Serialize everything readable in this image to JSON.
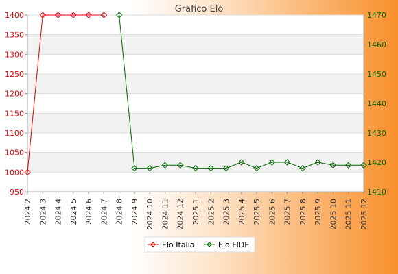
{
  "chart_data": {
    "type": "line",
    "title": "Grafico Elo",
    "xlabel": "",
    "ylabel": "",
    "categories": [
      "2024 2",
      "2024 3",
      "2024 4",
      "2024 5",
      "2024 6",
      "2024 7",
      "2024 8",
      "2024 9",
      "2024 10",
      "2024 11",
      "2024 12",
      "2025 1",
      "2025 2",
      "2025 3",
      "2025 4",
      "2025 5",
      "2025 6",
      "2025 7",
      "2025 8",
      "2025 9",
      "2025 10",
      "2025 11",
      "2025 12"
    ],
    "ylim_left": [
      950,
      1400
    ],
    "ylim_right": [
      1410,
      1470
    ],
    "yticks_left": [
      950,
      1000,
      1050,
      1100,
      1150,
      1200,
      1250,
      1300,
      1350,
      1400
    ],
    "yticks_right": [
      1410,
      1420,
      1430,
      1440,
      1450,
      1460,
      1470
    ],
    "grid": true,
    "legend_position": "bottom",
    "series": [
      {
        "name": "Elo Italia",
        "axis": "left",
        "color": "#dd0000",
        "values": [
          1000,
          1400,
          1400,
          1400,
          1400,
          1400,
          null,
          null,
          null,
          null,
          null,
          null,
          null,
          null,
          null,
          null,
          null,
          null,
          null,
          null,
          null,
          null,
          null
        ]
      },
      {
        "name": "Elo FIDE",
        "axis": "right",
        "color": "#006600",
        "values": [
          null,
          null,
          null,
          null,
          null,
          null,
          1470,
          1418,
          1418,
          1419,
          1419,
          1418,
          1418,
          1418,
          1420,
          1418,
          1420,
          1420,
          1418,
          1420,
          1419,
          1419,
          1419
        ]
      }
    ]
  }
}
